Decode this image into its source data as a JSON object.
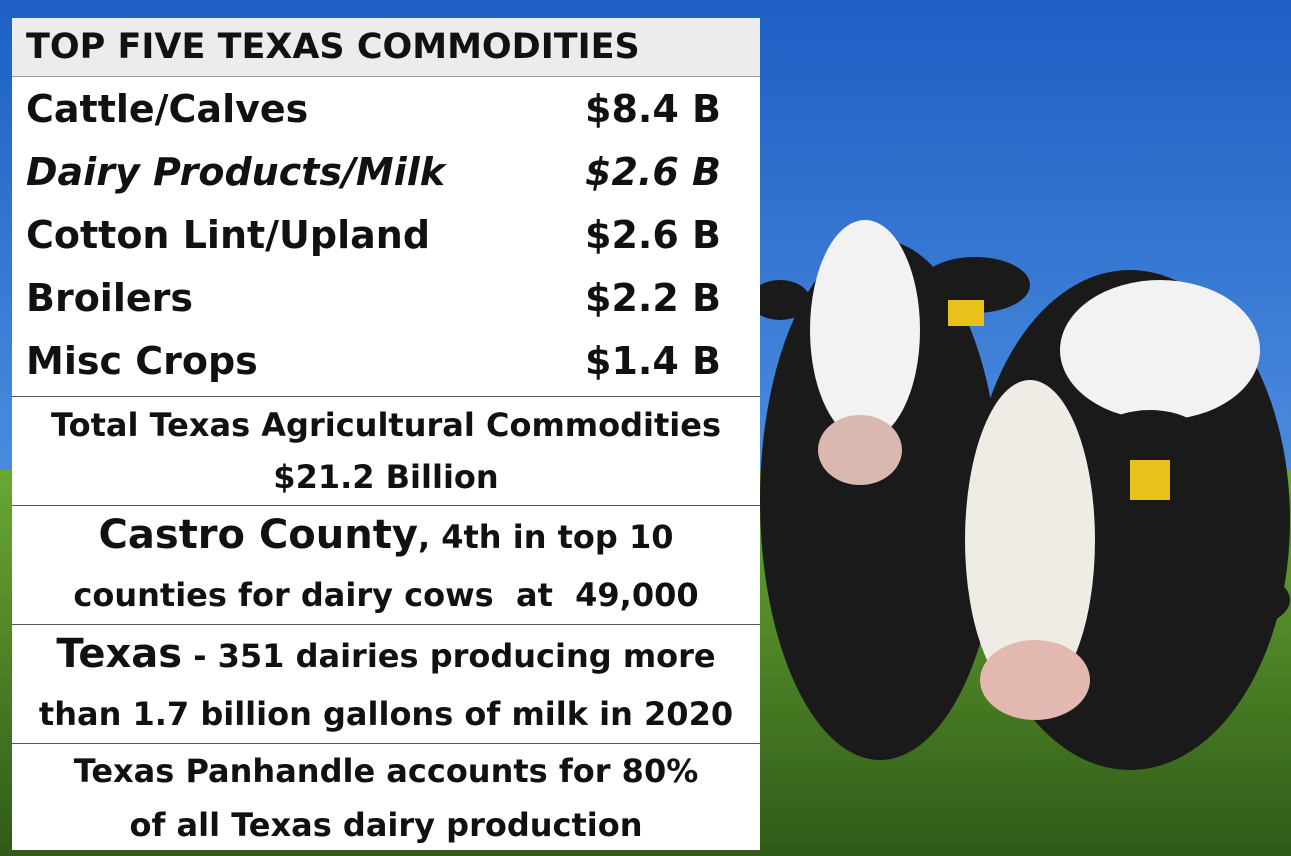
{
  "header": {
    "title": "TOP FIVE TEXAS COMMODITIES"
  },
  "commodities": [
    {
      "name": "Cattle/Calves",
      "value": "$8.4 B"
    },
    {
      "name": "Dairy Products/Milk",
      "value": "$2.6 B"
    },
    {
      "name": "Cotton Lint/Upland",
      "value": "$2.6 B"
    },
    {
      "name": "Broilers",
      "value": "$2.2 B"
    },
    {
      "name": "Misc Crops",
      "value": "$1.4 B"
    }
  ],
  "total": {
    "label": "Total Texas Agricultural Commodities",
    "value": "$21.2 Billion"
  },
  "castro": {
    "lead": "Castro County",
    "rest": ", 4th in top 10",
    "line2": "counties for dairy cows  at  49,000"
  },
  "texas": {
    "lead": "Texas",
    "rest": " - 351 dairies producing more",
    "line2": "than 1.7 billion gallons of milk in 2020"
  },
  "panhandle": {
    "line1": "Texas Panhandle accounts for 80%",
    "line2": "of all Texas dairy production"
  }
}
